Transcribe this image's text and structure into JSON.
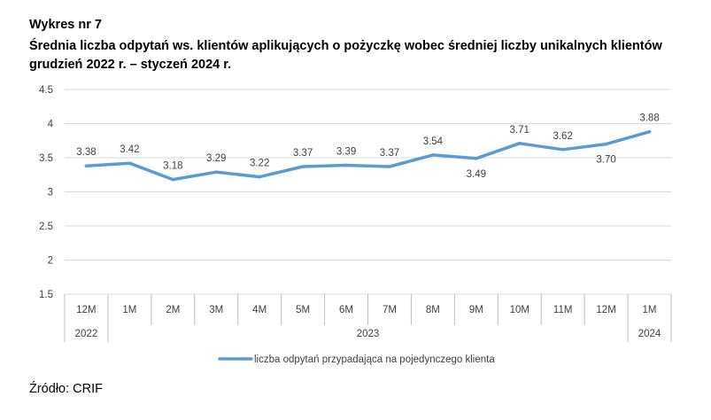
{
  "header": {
    "figure_label": "Wykres nr 7",
    "title": "Średnia liczba odpytań ws. klientów aplikujących o pożyczkę wobec średniej liczby unikalnych klientów grudzień 2022 r. – styczeń 2024 r."
  },
  "footer": {
    "source": "Źródło: CRIF"
  },
  "chart_data": {
    "type": "line",
    "categories": [
      "12M",
      "1M",
      "2M",
      "3M",
      "4M",
      "5M",
      "6M",
      "7M",
      "8M",
      "9M",
      "10M",
      "11M",
      "12M",
      "1M"
    ],
    "year_groups": [
      {
        "label": "2022",
        "span": 1
      },
      {
        "label": "2023",
        "span": 12
      },
      {
        "label": "2024",
        "span": 1
      }
    ],
    "series": [
      {
        "name": "liczba odpytań przypadająca na pojedynczego klienta",
        "values": [
          3.38,
          3.42,
          3.18,
          3.29,
          3.22,
          3.37,
          3.39,
          3.37,
          3.54,
          3.49,
          3.71,
          3.62,
          3.7,
          3.88
        ],
        "data_labels": [
          "3.38",
          "3.42",
          "3.18",
          "3.29",
          "3.22",
          "3.37",
          "3.39",
          "3.37",
          "3.54",
          "3.49",
          "3.71",
          "3.62",
          "3.70",
          "3.88"
        ],
        "label_side": [
          "above",
          "above",
          "above",
          "above",
          "above",
          "above",
          "above",
          "above",
          "above",
          "below",
          "above",
          "above",
          "below",
          "above"
        ],
        "color": "#5B9BD5"
      }
    ],
    "y_ticks": [
      "1.5",
      "2",
      "2.5",
      "3",
      "3.5",
      "4",
      "4.5"
    ],
    "ylim": [
      1.5,
      4.5
    ],
    "grid": true,
    "legend_position": "bottom"
  }
}
